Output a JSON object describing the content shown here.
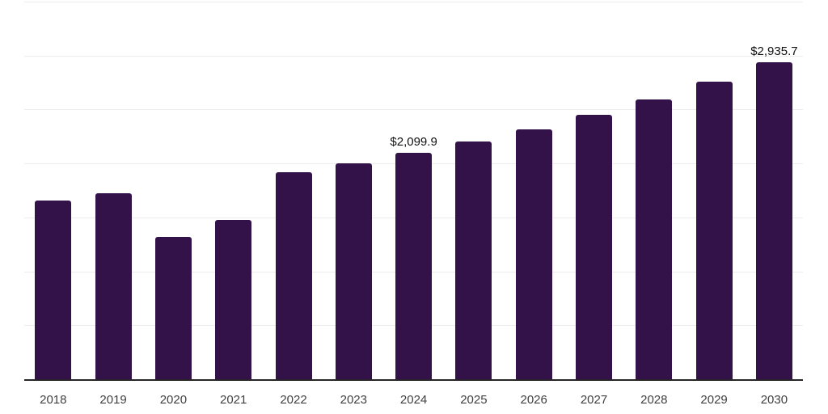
{
  "chart_data": {
    "type": "bar",
    "title": "",
    "xlabel": "",
    "ylabel": "",
    "categories": [
      "2018",
      "2019",
      "2020",
      "2021",
      "2022",
      "2023",
      "2024",
      "2025",
      "2026",
      "2027",
      "2028",
      "2029",
      "2030"
    ],
    "values": [
      1660,
      1721,
      1317,
      1474,
      1922,
      2004,
      2099.9,
      2205,
      2317,
      2451,
      2593,
      2757,
      2935.7
    ],
    "data_labels": {
      "2024": "$2,099.9",
      "2030": "$2,935.7"
    },
    "ylim": [
      0,
      3500
    ],
    "gridline_step": 500,
    "grid": true,
    "legend_position": "none",
    "colors": {
      "bar": "#33124A",
      "axis_line": "#262626",
      "gridline": "#ececec",
      "x_tick_label": "#404040",
      "data_label": "#111111",
      "background": "#ffffff"
    }
  }
}
